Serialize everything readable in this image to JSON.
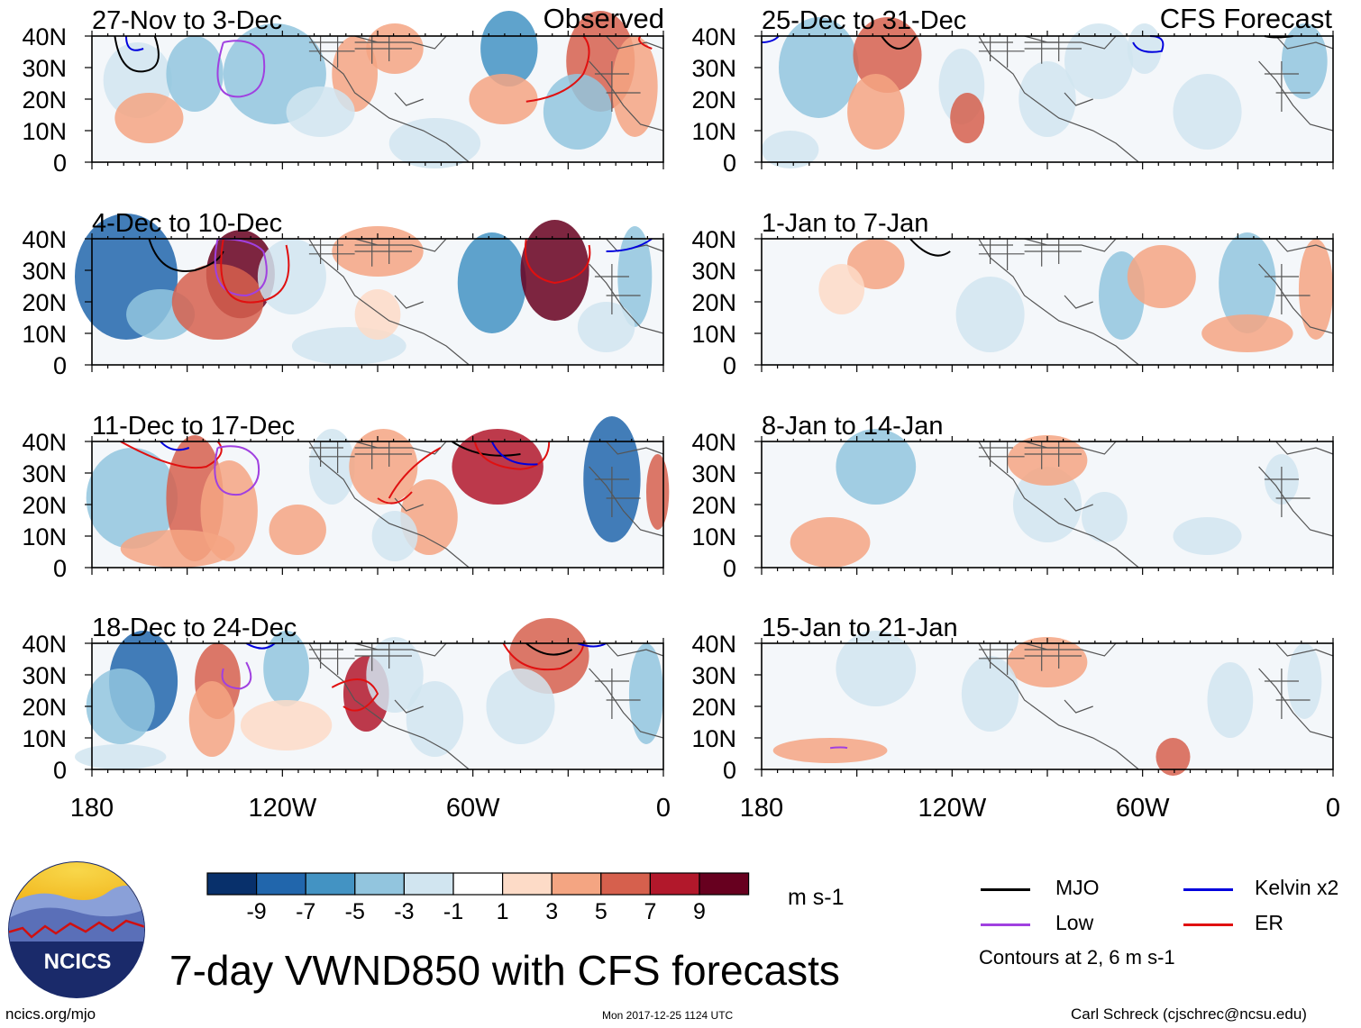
{
  "title": "7-day VWND850 with CFS forecasts",
  "header_labels": {
    "observed": "Observed",
    "forecast": "CFS Forecast"
  },
  "panels": [
    {
      "id": "p1",
      "date": "27-Nov to 3-Dec",
      "column": "observed"
    },
    {
      "id": "p2",
      "date": "4-Dec to 10-Dec",
      "column": "observed"
    },
    {
      "id": "p3",
      "date": "11-Dec to 17-Dec",
      "column": "observed"
    },
    {
      "id": "p4",
      "date": "18-Dec to 24-Dec",
      "column": "observed"
    },
    {
      "id": "p5",
      "date": "25-Dec to 31-Dec",
      "column": "forecast"
    },
    {
      "id": "p6",
      "date": "1-Jan to 7-Jan",
      "column": "forecast"
    },
    {
      "id": "p7",
      "date": "8-Jan to 14-Jan",
      "column": "forecast"
    },
    {
      "id": "p8",
      "date": "15-Jan to 21-Jan",
      "column": "forecast"
    }
  ],
  "lat_labels": [
    "40N",
    "30N",
    "20N",
    "10N",
    "0"
  ],
  "lon_labels": [
    "180",
    "120W",
    "60W",
    "0"
  ],
  "colorbar": {
    "colors": [
      "#08306b",
      "#2166ac",
      "#4393c3",
      "#92c5de",
      "#d1e5f0",
      "#ffffff",
      "#fddbc7",
      "#f4a582",
      "#d6604d",
      "#b2182b",
      "#67001f"
    ],
    "labels": [
      "-9",
      "-7",
      "-5",
      "-3",
      "-1",
      "1",
      "3",
      "5",
      "7",
      "9"
    ],
    "units": "m s-1"
  },
  "legend": {
    "items": [
      {
        "label": "MJO",
        "color": "#000000"
      },
      {
        "label": "Kelvin x2",
        "color": "#0000dd"
      },
      {
        "label": "Low",
        "color": "#a040e0"
      },
      {
        "label": "ER",
        "color": "#e01010"
      }
    ],
    "contours_note": "Contours at 2, 6 m s-1"
  },
  "logo": {
    "text": "NCICS"
  },
  "footer": {
    "left": "ncics.org/mjo",
    "center": "Mon 2017-12-25 1124 UTC",
    "right": "Carl Schreck (cjschrec@ncsu.edu)"
  }
}
